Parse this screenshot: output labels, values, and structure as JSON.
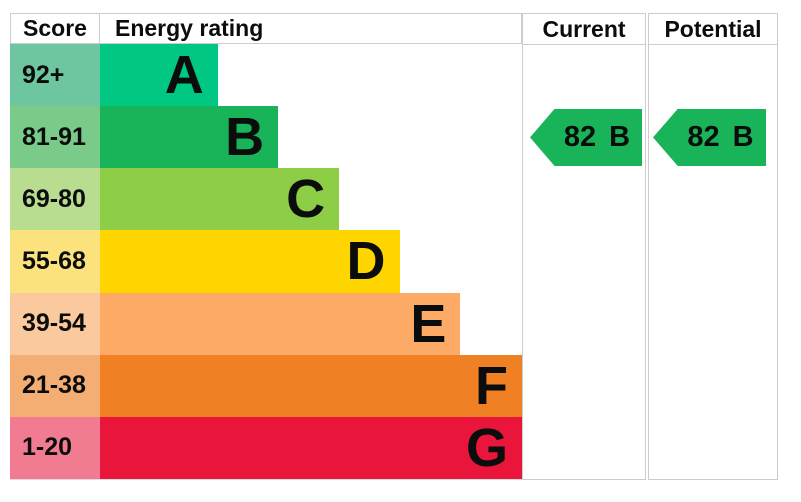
{
  "header": {
    "score": "Score",
    "energy_rating": "Energy rating",
    "current": "Current",
    "potential": "Potential"
  },
  "chart_data": {
    "type": "bar",
    "title": "",
    "categories": [
      "A",
      "B",
      "C",
      "D",
      "E",
      "F",
      "G"
    ],
    "bands": [
      {
        "letter": "A",
        "score_range": "92+",
        "color": "#00c781",
        "tint": "#6ec6a0",
        "width_pct": 23.0
      },
      {
        "letter": "B",
        "score_range": "81-91",
        "color": "#19b459",
        "tint": "#7aca89",
        "width_pct": 34.8
      },
      {
        "letter": "C",
        "score_range": "69-80",
        "color": "#8dce46",
        "tint": "#b9dd90",
        "width_pct": 46.7
      },
      {
        "letter": "D",
        "score_range": "55-68",
        "color": "#ffd500",
        "tint": "#fbe27d",
        "width_pct": 58.5
      },
      {
        "letter": "E",
        "score_range": "39-54",
        "color": "#fcaa65",
        "tint": "#fbc99e",
        "width_pct": 70.4
      },
      {
        "letter": "F",
        "score_range": "21-38",
        "color": "#ef8023",
        "tint": "#f4ad73",
        "width_pct": 82.5
      },
      {
        "letter": "G",
        "score_range": "1-20",
        "color": "#e9153b",
        "tint": "#f17b90",
        "width_pct": 94.3
      }
    ],
    "current": {
      "value": "82",
      "letter": "B",
      "band_index": 1,
      "color": "#19b459"
    },
    "potential": {
      "value": "82",
      "letter": "B",
      "band_index": 1,
      "color": "#19b459"
    },
    "legend": "off",
    "grid": "off"
  },
  "styles": {
    "border_color": "#cccccc",
    "bottom_border_color": "#dddddd",
    "text_color": "#0b0c0c"
  }
}
